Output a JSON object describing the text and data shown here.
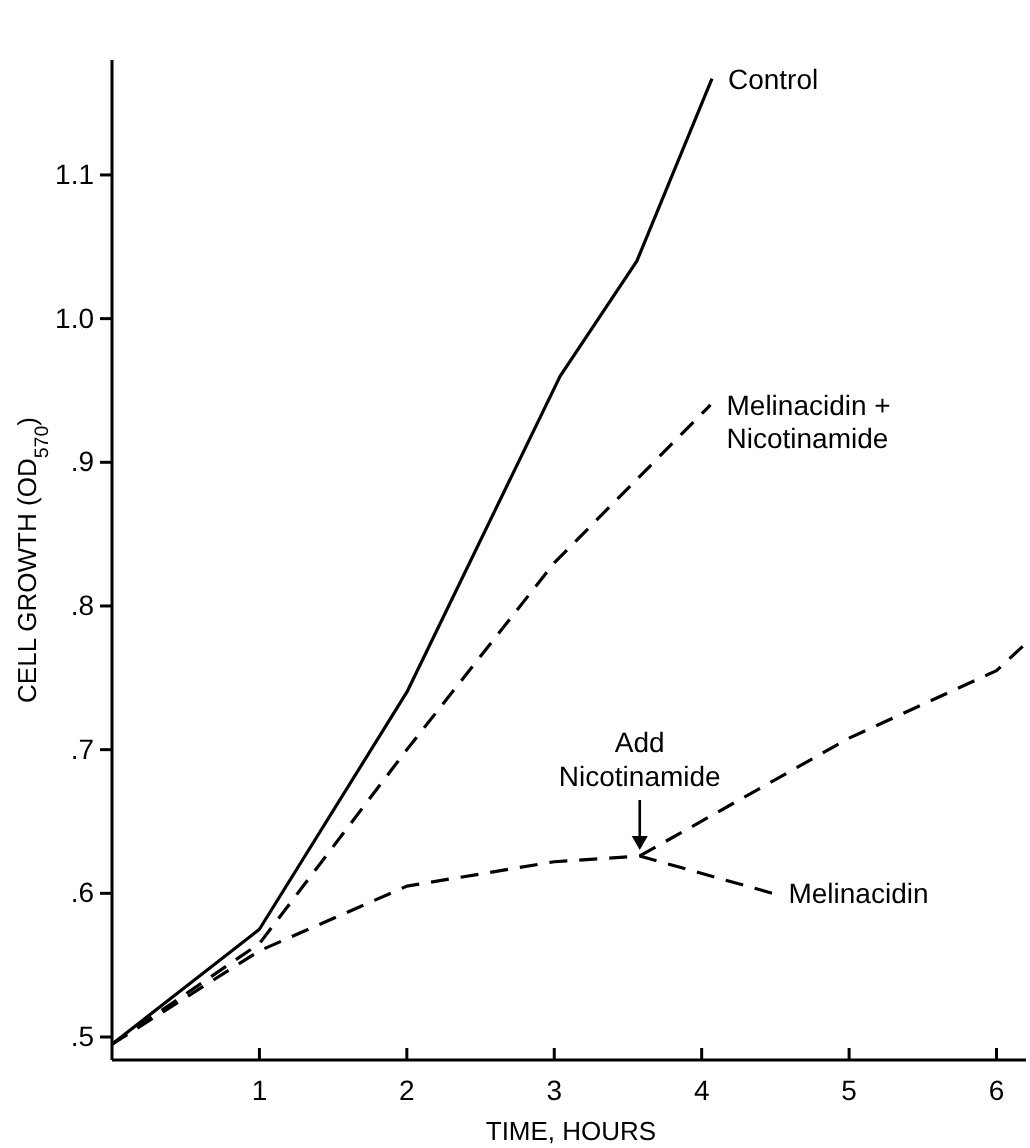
{
  "chart_data": {
    "type": "line",
    "xlabel": "TIME, HOURS",
    "ylabel": "CELL GROWTH (OD$_{570}$)",
    "xlim": [
      0,
      6.2
    ],
    "xticks": [
      1,
      2,
      3,
      4,
      5,
      6
    ],
    "ylim": [
      0.484,
      1.18
    ],
    "yticks": [
      {
        "value": 0.5,
        "label": ".5"
      },
      {
        "value": 0.6,
        "label": ".6"
      },
      {
        "value": 0.7,
        "label": ".7"
      },
      {
        "value": 0.8,
        "label": ".8"
      },
      {
        "value": 0.9,
        "label": ".9"
      },
      {
        "value": 1.0,
        "label": "1.0"
      },
      {
        "value": 1.1,
        "label": "1.1"
      }
    ],
    "grid": false,
    "legend": false,
    "marker": "none",
    "series": [
      {
        "name": "Control",
        "color": "#000000",
        "line_style": "solid",
        "x": [
          0,
          1,
          2,
          3.04,
          3.56,
          4.07
        ],
        "values": [
          0.495,
          0.575,
          0.74,
          0.96,
          1.04,
          1.167
        ]
      },
      {
        "name": "Melinacidin + Nicotinamide",
        "color": "#000000",
        "line_style": "dashed",
        "x": [
          0,
          1,
          2,
          3,
          4.06
        ],
        "values": [
          0.495,
          0.565,
          0.7,
          0.83,
          0.94
        ]
      },
      {
        "name": "Melinacidin",
        "color": "#000000",
        "line_style": "dashed",
        "x": [
          0,
          1,
          2,
          3,
          3.58,
          4.48
        ],
        "values": [
          0.495,
          0.56,
          0.605,
          0.622,
          0.626,
          0.6
        ]
      },
      {
        "color": "#000000",
        "line_style": "dashed",
        "x": [
          3.58,
          5,
          6,
          6.2
        ],
        "values": [
          0.626,
          0.708,
          0.755,
          0.774
        ]
      }
    ],
    "annotations": [
      {
        "text": "Add Nicotinamide",
        "x": 3.58,
        "y": 0.626
      }
    ]
  }
}
